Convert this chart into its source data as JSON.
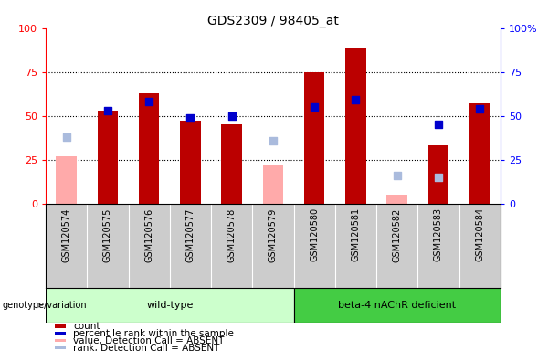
{
  "title": "GDS2309 / 98405_at",
  "samples": [
    "GSM120574",
    "GSM120575",
    "GSM120576",
    "GSM120577",
    "GSM120578",
    "GSM120579",
    "GSM120580",
    "GSM120581",
    "GSM120582",
    "GSM120583",
    "GSM120584"
  ],
  "count": [
    null,
    53,
    63,
    47,
    45,
    null,
    75,
    89,
    null,
    33,
    57
  ],
  "count_absent": [
    27,
    null,
    null,
    null,
    null,
    22,
    null,
    null,
    null,
    null,
    null
  ],
  "percentile_rank": [
    null,
    53,
    58,
    49,
    50,
    null,
    55,
    59,
    null,
    45,
    54
  ],
  "rank_absent": [
    38,
    null,
    null,
    null,
    null,
    36,
    null,
    null,
    null,
    null,
    null
  ],
  "value_absent_rank": [
    null,
    null,
    null,
    null,
    null,
    null,
    null,
    null,
    16,
    null,
    null
  ],
  "value_absent_count": [
    null,
    null,
    null,
    null,
    null,
    null,
    null,
    null,
    5,
    null,
    null
  ],
  "rank_absent_gsm583": [
    null,
    null,
    null,
    null,
    null,
    null,
    null,
    null,
    null,
    15,
    null
  ],
  "ylim": [
    0,
    100
  ],
  "yticks": [
    0,
    25,
    50,
    75,
    100
  ],
  "bar_width": 0.5,
  "bar_color_red": "#bb0000",
  "bar_color_pink": "#ffaaaa",
  "dot_color_blue": "#0000cc",
  "dot_color_lightblue": "#aabbdd",
  "wt_color_light": "#ccffcc",
  "wt_color_dark": "#44cc44",
  "background_gray": "#cccccc",
  "legend_items": [
    {
      "label": "count",
      "color": "#bb0000"
    },
    {
      "label": "percentile rank within the sample",
      "color": "#0000cc"
    },
    {
      "label": "value, Detection Call = ABSENT",
      "color": "#ffaaaa"
    },
    {
      "label": "rank, Detection Call = ABSENT",
      "color": "#aabbdd"
    }
  ],
  "wt_label": "wild-type",
  "beta_label": "beta-4 nAChR deficient",
  "geno_label": "genotype/variation"
}
